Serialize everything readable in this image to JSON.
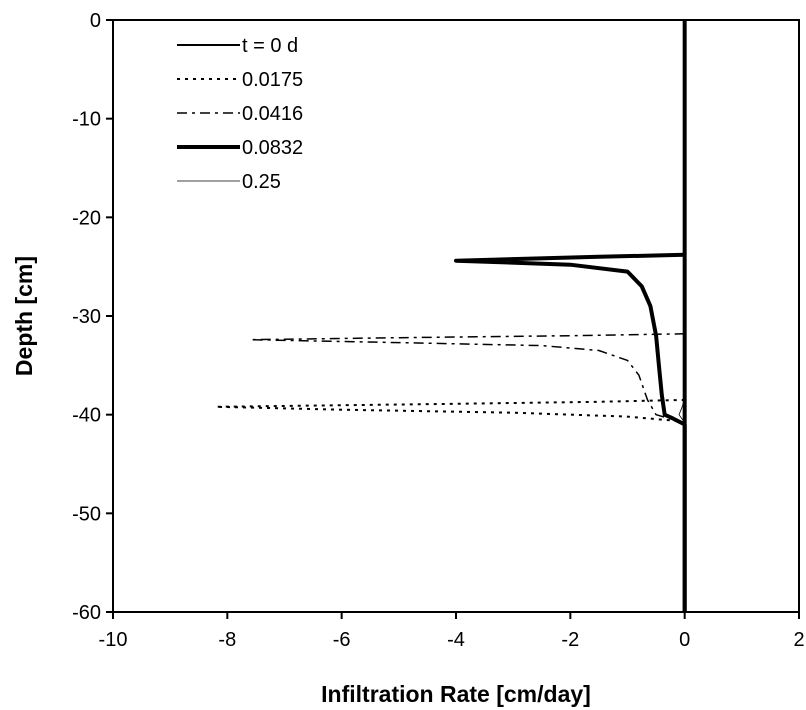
{
  "chart_data": {
    "type": "line",
    "title": "",
    "xlabel": "Infiltration Rate [cm/day]",
    "ylabel": "Depth [cm]",
    "xlim": [
      -10,
      2
    ],
    "ylim": [
      -60,
      0
    ],
    "xticks": [
      -10,
      -8,
      -6,
      -4,
      -2,
      0,
      2
    ],
    "yticks": [
      0,
      -10,
      -20,
      -30,
      -40,
      -50,
      -60
    ],
    "xtick_labels": [
      "-10",
      "-8",
      "-6",
      "-4",
      "-2",
      "0",
      "2"
    ],
    "ytick_labels": [
      "0",
      "-10",
      "-20",
      "-30",
      "-40",
      "-50",
      "-60"
    ],
    "grid": false,
    "legend_position": "top-left",
    "series": [
      {
        "name": "t = 0 d",
        "style": "solid",
        "stroke_width": 2,
        "color": "#000000",
        "points": [
          [
            0,
            0
          ],
          [
            0,
            -60
          ]
        ]
      },
      {
        "name": "0.0175",
        "style": "dotted",
        "stroke_width": 2,
        "color": "#000000",
        "points": [
          [
            0,
            -38.5
          ],
          [
            -1.5,
            -38.7
          ],
          [
            -4,
            -38.9
          ],
          [
            -8.2,
            -39.2
          ],
          [
            -6,
            -39.5
          ],
          [
            -3,
            -39.8
          ],
          [
            -1,
            -40.2
          ],
          [
            -0.2,
            -40.6
          ],
          [
            0,
            -40.8
          ],
          [
            0,
            -60
          ]
        ]
      },
      {
        "name": "0.0416",
        "style": "dashdot",
        "stroke_width": 1.5,
        "color": "#000000",
        "points": [
          [
            0,
            -31.8
          ],
          [
            -2,
            -32
          ],
          [
            -5,
            -32.2
          ],
          [
            -7.6,
            -32.4
          ],
          [
            -5,
            -32.7
          ],
          [
            -2.5,
            -33
          ],
          [
            -1.5,
            -33.5
          ],
          [
            -1,
            -34.5
          ],
          [
            -0.8,
            -36
          ],
          [
            -0.65,
            -38.5
          ],
          [
            -0.5,
            -40
          ],
          [
            -0.2,
            -40.5
          ],
          [
            0,
            -40.8
          ],
          [
            0,
            -60
          ]
        ]
      },
      {
        "name": "0.0832",
        "style": "thick",
        "stroke_width": 4,
        "color": "#000000",
        "points": [
          [
            0,
            -23.8
          ],
          [
            -1.5,
            -24
          ],
          [
            -4,
            -24.4
          ],
          [
            -2,
            -24.8
          ],
          [
            -1,
            -25.5
          ],
          [
            -0.75,
            -27
          ],
          [
            -0.6,
            -29
          ],
          [
            -0.5,
            -32
          ],
          [
            -0.45,
            -35
          ],
          [
            -0.4,
            -38
          ],
          [
            -0.35,
            -40
          ],
          [
            -0.2,
            -40.4
          ],
          [
            0,
            -41
          ],
          [
            0,
            -60
          ]
        ]
      },
      {
        "name": "0.25",
        "style": "thin",
        "stroke_width": 0.8,
        "color": "#000000",
        "points": [
          [
            0,
            -38.4
          ],
          [
            -0.05,
            -39.3
          ],
          [
            -0.1,
            -40
          ],
          [
            0,
            -40.8
          ],
          [
            0,
            -60
          ]
        ]
      }
    ]
  }
}
